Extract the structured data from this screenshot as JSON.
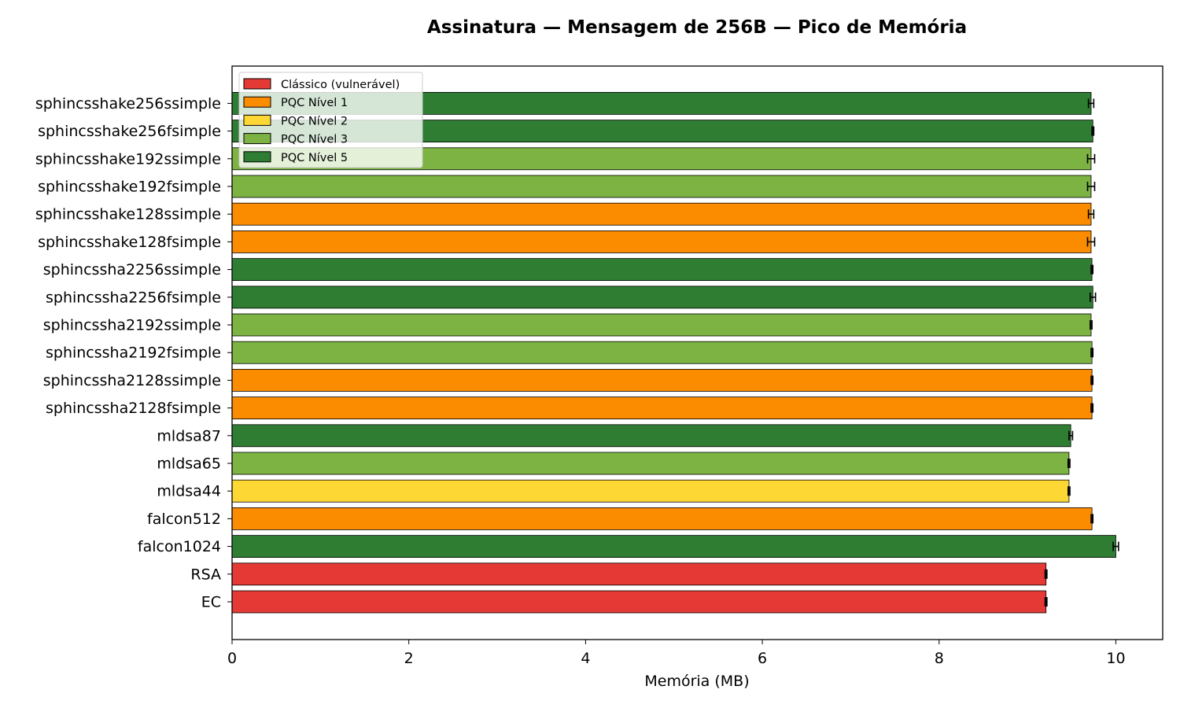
{
  "chart_data": {
    "type": "bar",
    "orientation": "horizontal",
    "title": "Assinatura — Mensagem de 256B — Pico de Memória",
    "xlabel": "Memória (MB)",
    "ylabel": "",
    "xlim": [
      0,
      10.53
    ],
    "xticks": [
      0,
      2,
      4,
      6,
      8,
      10
    ],
    "grid": false,
    "legend_position": "top-left",
    "legend": [
      {
        "name": "Clássico (vulnerável)",
        "color": "#e53935"
      },
      {
        "name": "PQC Nível 1",
        "color": "#fb8c00"
      },
      {
        "name": "PQC Nível 2",
        "color": "#fdd835"
      },
      {
        "name": "PQC Nível 3",
        "color": "#7cb342"
      },
      {
        "name": "PQC Nível 5",
        "color": "#2e7d32"
      }
    ],
    "bars": [
      {
        "label": "EC",
        "value": 9.21,
        "error": 0.01,
        "group": "Clássico (vulnerável)"
      },
      {
        "label": "RSA",
        "value": 9.21,
        "error": 0.01,
        "group": "Clássico (vulnerável)"
      },
      {
        "label": "falcon1024",
        "value": 10.0,
        "error": 0.03,
        "group": "PQC Nível 5"
      },
      {
        "label": "falcon512",
        "value": 9.73,
        "error": 0.01,
        "group": "PQC Nível 1"
      },
      {
        "label": "mldsa44",
        "value": 9.47,
        "error": 0.01,
        "group": "PQC Nível 2"
      },
      {
        "label": "mldsa65",
        "value": 9.47,
        "error": 0.01,
        "group": "PQC Nível 3"
      },
      {
        "label": "mldsa87",
        "value": 9.49,
        "error": 0.02,
        "group": "PQC Nível 5"
      },
      {
        "label": "sphincssha2128fsimple",
        "value": 9.73,
        "error": 0.01,
        "group": "PQC Nível 1"
      },
      {
        "label": "sphincssha2128ssimple",
        "value": 9.73,
        "error": 0.01,
        "group": "PQC Nível 1"
      },
      {
        "label": "sphincssha2192fsimple",
        "value": 9.73,
        "error": 0.01,
        "group": "PQC Nível 3"
      },
      {
        "label": "sphincssha2192ssimple",
        "value": 9.72,
        "error": 0.01,
        "group": "PQC Nível 3"
      },
      {
        "label": "sphincssha2256fsimple",
        "value": 9.74,
        "error": 0.03,
        "group": "PQC Nível 5"
      },
      {
        "label": "sphincssha2256ssimple",
        "value": 9.73,
        "error": 0.01,
        "group": "PQC Nível 5"
      },
      {
        "label": "sphincsshake128fsimple",
        "value": 9.72,
        "error": 0.04,
        "group": "PQC Nível 1"
      },
      {
        "label": "sphincsshake128ssimple",
        "value": 9.72,
        "error": 0.03,
        "group": "PQC Nível 1"
      },
      {
        "label": "sphincsshake192fsimple",
        "value": 9.72,
        "error": 0.04,
        "group": "PQC Nível 3"
      },
      {
        "label": "sphincsshake192ssimple",
        "value": 9.72,
        "error": 0.04,
        "group": "PQC Nível 3"
      },
      {
        "label": "sphincsshake256fsimple",
        "value": 9.74,
        "error": 0.01,
        "group": "PQC Nível 5"
      },
      {
        "label": "sphincsshake256ssimple",
        "value": 9.72,
        "error": 0.03,
        "group": "PQC Nível 5"
      }
    ]
  }
}
